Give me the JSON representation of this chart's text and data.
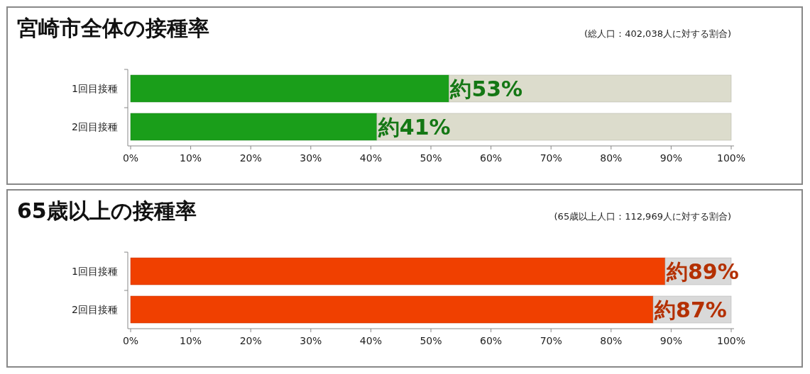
{
  "chart_data": [
    {
      "type": "bar",
      "orientation": "horizontal",
      "stacked": true,
      "title": "宮崎市全体の接種率",
      "annotations": [
        "(総人口：402,038人に対する割合)"
      ],
      "categories": [
        "1回目接種",
        "2回目接種"
      ],
      "series": [
        {
          "color": "#1a9e1a",
          "values": [
            53,
            41
          ],
          "value_labels": [
            "約53%",
            "約41%"
          ]
        },
        {
          "color": "#dcdccc",
          "values": [
            47,
            59
          ]
        }
      ],
      "xlim": [
        0,
        100
      ],
      "xticks": [
        {
          "value": 0,
          "label": "0%"
        },
        {
          "value": 10,
          "label": "10%"
        },
        {
          "value": 20,
          "label": "20%"
        },
        {
          "value": 30,
          "label": "30%"
        },
        {
          "value": 40,
          "label": "40%"
        },
        {
          "value": 50,
          "label": "50%"
        },
        {
          "value": 60,
          "label": "60%"
        },
        {
          "value": 70,
          "label": "70%"
        },
        {
          "value": 80,
          "label": "80%"
        },
        {
          "value": 90,
          "label": "90%"
        },
        {
          "value": 100,
          "label": "100%"
        }
      ]
    },
    {
      "type": "bar",
      "orientation": "horizontal",
      "stacked": true,
      "title": "65歳以上の接種率",
      "annotations": [
        "(65歳以上人口：112,969人に対する割合)"
      ],
      "categories": [
        "1回目接種",
        "2回目接種"
      ],
      "series": [
        {
          "color": "#f04000",
          "values": [
            89,
            87
          ],
          "value_labels": [
            "約89%",
            "約87%"
          ]
        },
        {
          "color": "#d9d9d9",
          "values": [
            11,
            13
          ]
        }
      ],
      "xlim": [
        0,
        100
      ],
      "xticks": [
        {
          "value": 0,
          "label": "0%"
        },
        {
          "value": 10,
          "label": "10%"
        },
        {
          "value": 20,
          "label": "20%"
        },
        {
          "value": 30,
          "label": "30%"
        },
        {
          "value": 40,
          "label": "40%"
        },
        {
          "value": 50,
          "label": "50%"
        },
        {
          "value": 60,
          "label": "60%"
        },
        {
          "value": 70,
          "label": "70%"
        },
        {
          "value": 80,
          "label": "80%"
        },
        {
          "value": 90,
          "label": "90%"
        },
        {
          "value": 100,
          "label": "100%"
        }
      ]
    }
  ]
}
